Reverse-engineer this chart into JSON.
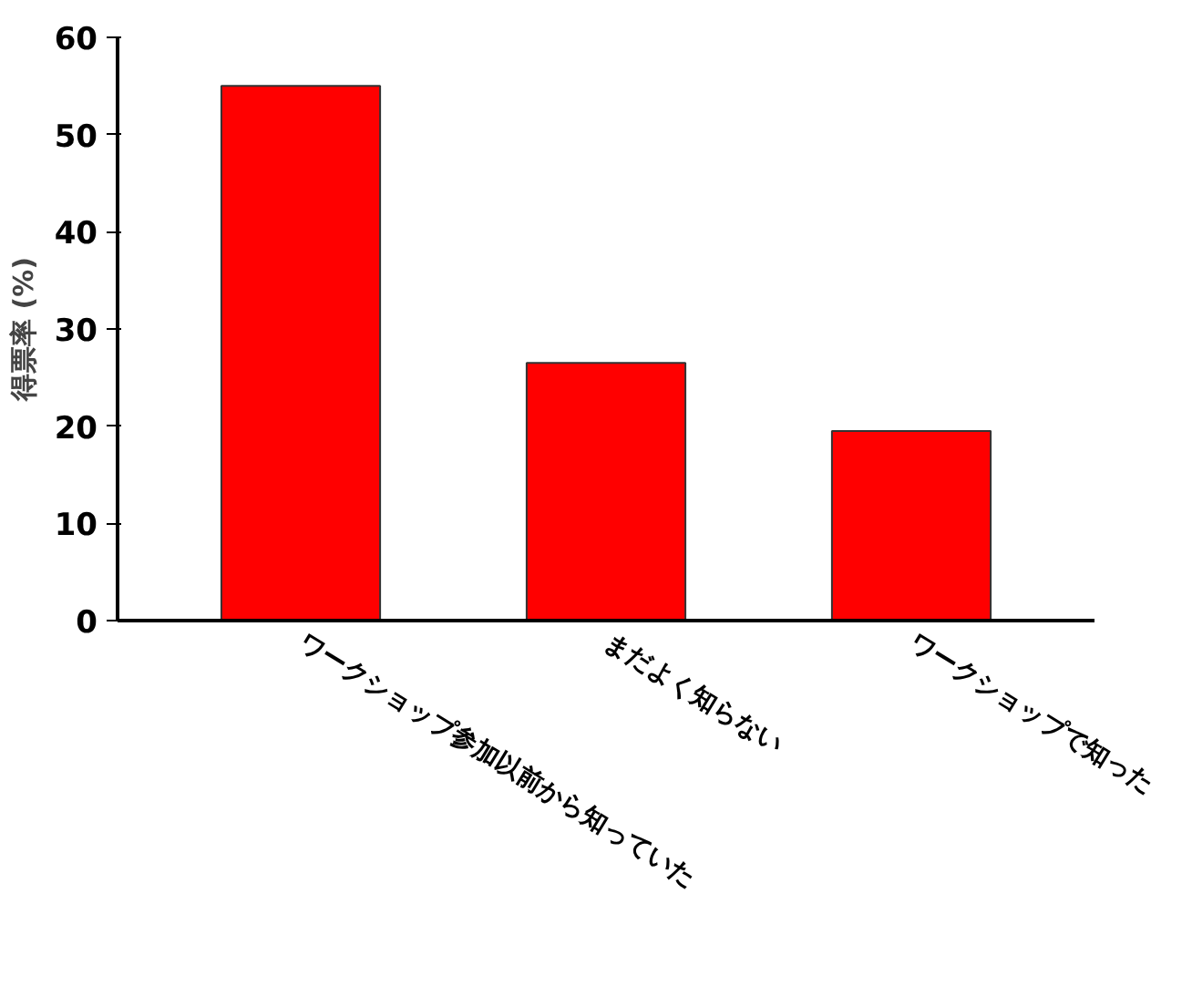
{
  "chart_data": {
    "type": "bar",
    "ylabel": "得票率 (%)",
    "categories": [
      "ワークショップ参加以前から知っていた",
      "まだよく知らない",
      "ワークショップで知った"
    ],
    "values": [
      55,
      26.5,
      19.5
    ],
    "color": "#ff0000",
    "ylim": [
      0,
      60
    ],
    "yticks": [
      0,
      10,
      20,
      30,
      40,
      50,
      60
    ],
    "grid": false
  }
}
